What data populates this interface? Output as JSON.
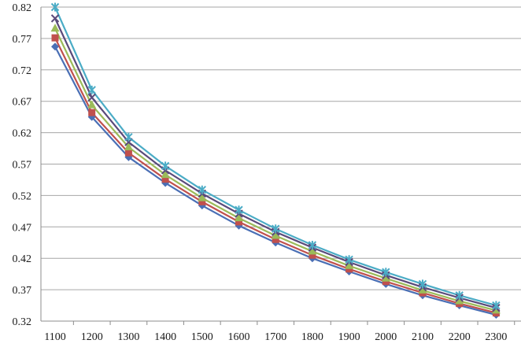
{
  "chart_data": {
    "type": "line",
    "title": "",
    "xlabel": "",
    "ylabel": "",
    "categories": [
      "1100",
      "1200",
      "1300",
      "1400",
      "1500",
      "1600",
      "1700",
      "1800",
      "1900",
      "2000",
      "2100",
      "2200",
      "2300"
    ],
    "y_ticks": [
      "0.32",
      "0.37",
      "0.42",
      "0.47",
      "0.52",
      "0.57",
      "0.62",
      "0.67",
      "0.72",
      "0.77",
      "0.82"
    ],
    "ylim": [
      0.32,
      0.82
    ],
    "grid": "horizontal",
    "legend": "none",
    "series": [
      {
        "color": "#4a6fb5",
        "marker": "diamond",
        "values": [
          0.757,
          0.645,
          0.581,
          0.54,
          0.504,
          0.472,
          0.445,
          0.42,
          0.399,
          0.379,
          0.361,
          0.345,
          0.33
        ]
      },
      {
        "color": "#c0504d",
        "marker": "square",
        "values": [
          0.771,
          0.652,
          0.588,
          0.546,
          0.51,
          0.478,
          0.45,
          0.425,
          0.403,
          0.383,
          0.365,
          0.348,
          0.333
        ]
      },
      {
        "color": "#9bbb59",
        "marker": "triangle",
        "values": [
          0.786,
          0.664,
          0.597,
          0.553,
          0.516,
          0.484,
          0.456,
          0.431,
          0.408,
          0.388,
          0.369,
          0.352,
          0.337
        ]
      },
      {
        "color": "#5a4a7a",
        "marker": "x",
        "values": [
          0.802,
          0.676,
          0.605,
          0.56,
          0.523,
          0.491,
          0.462,
          0.437,
          0.414,
          0.393,
          0.374,
          0.357,
          0.341
        ]
      },
      {
        "color": "#4bacc6",
        "marker": "star",
        "values": [
          0.82,
          0.688,
          0.613,
          0.567,
          0.529,
          0.497,
          0.467,
          0.441,
          0.418,
          0.398,
          0.379,
          0.361,
          0.345
        ]
      }
    ]
  }
}
